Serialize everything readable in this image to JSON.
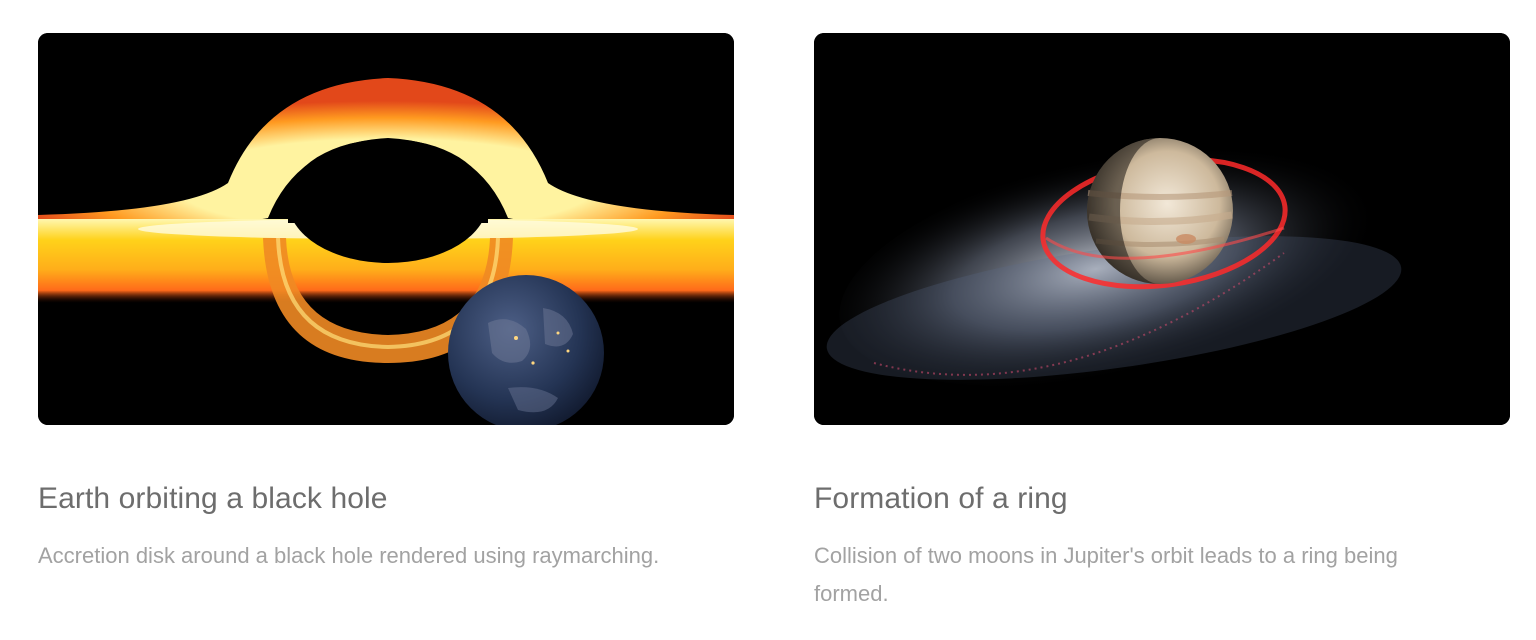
{
  "cards": [
    {
      "image": "black-hole-render",
      "title": "Earth orbiting a black hole",
      "description": "Accretion disk around a black hole rendered using raymarching."
    },
    {
      "image": "jupiter-ring-render",
      "title": "Formation of a ring",
      "description": "Collision of two moons in Jupiter's orbit leads to a ring being formed."
    }
  ]
}
